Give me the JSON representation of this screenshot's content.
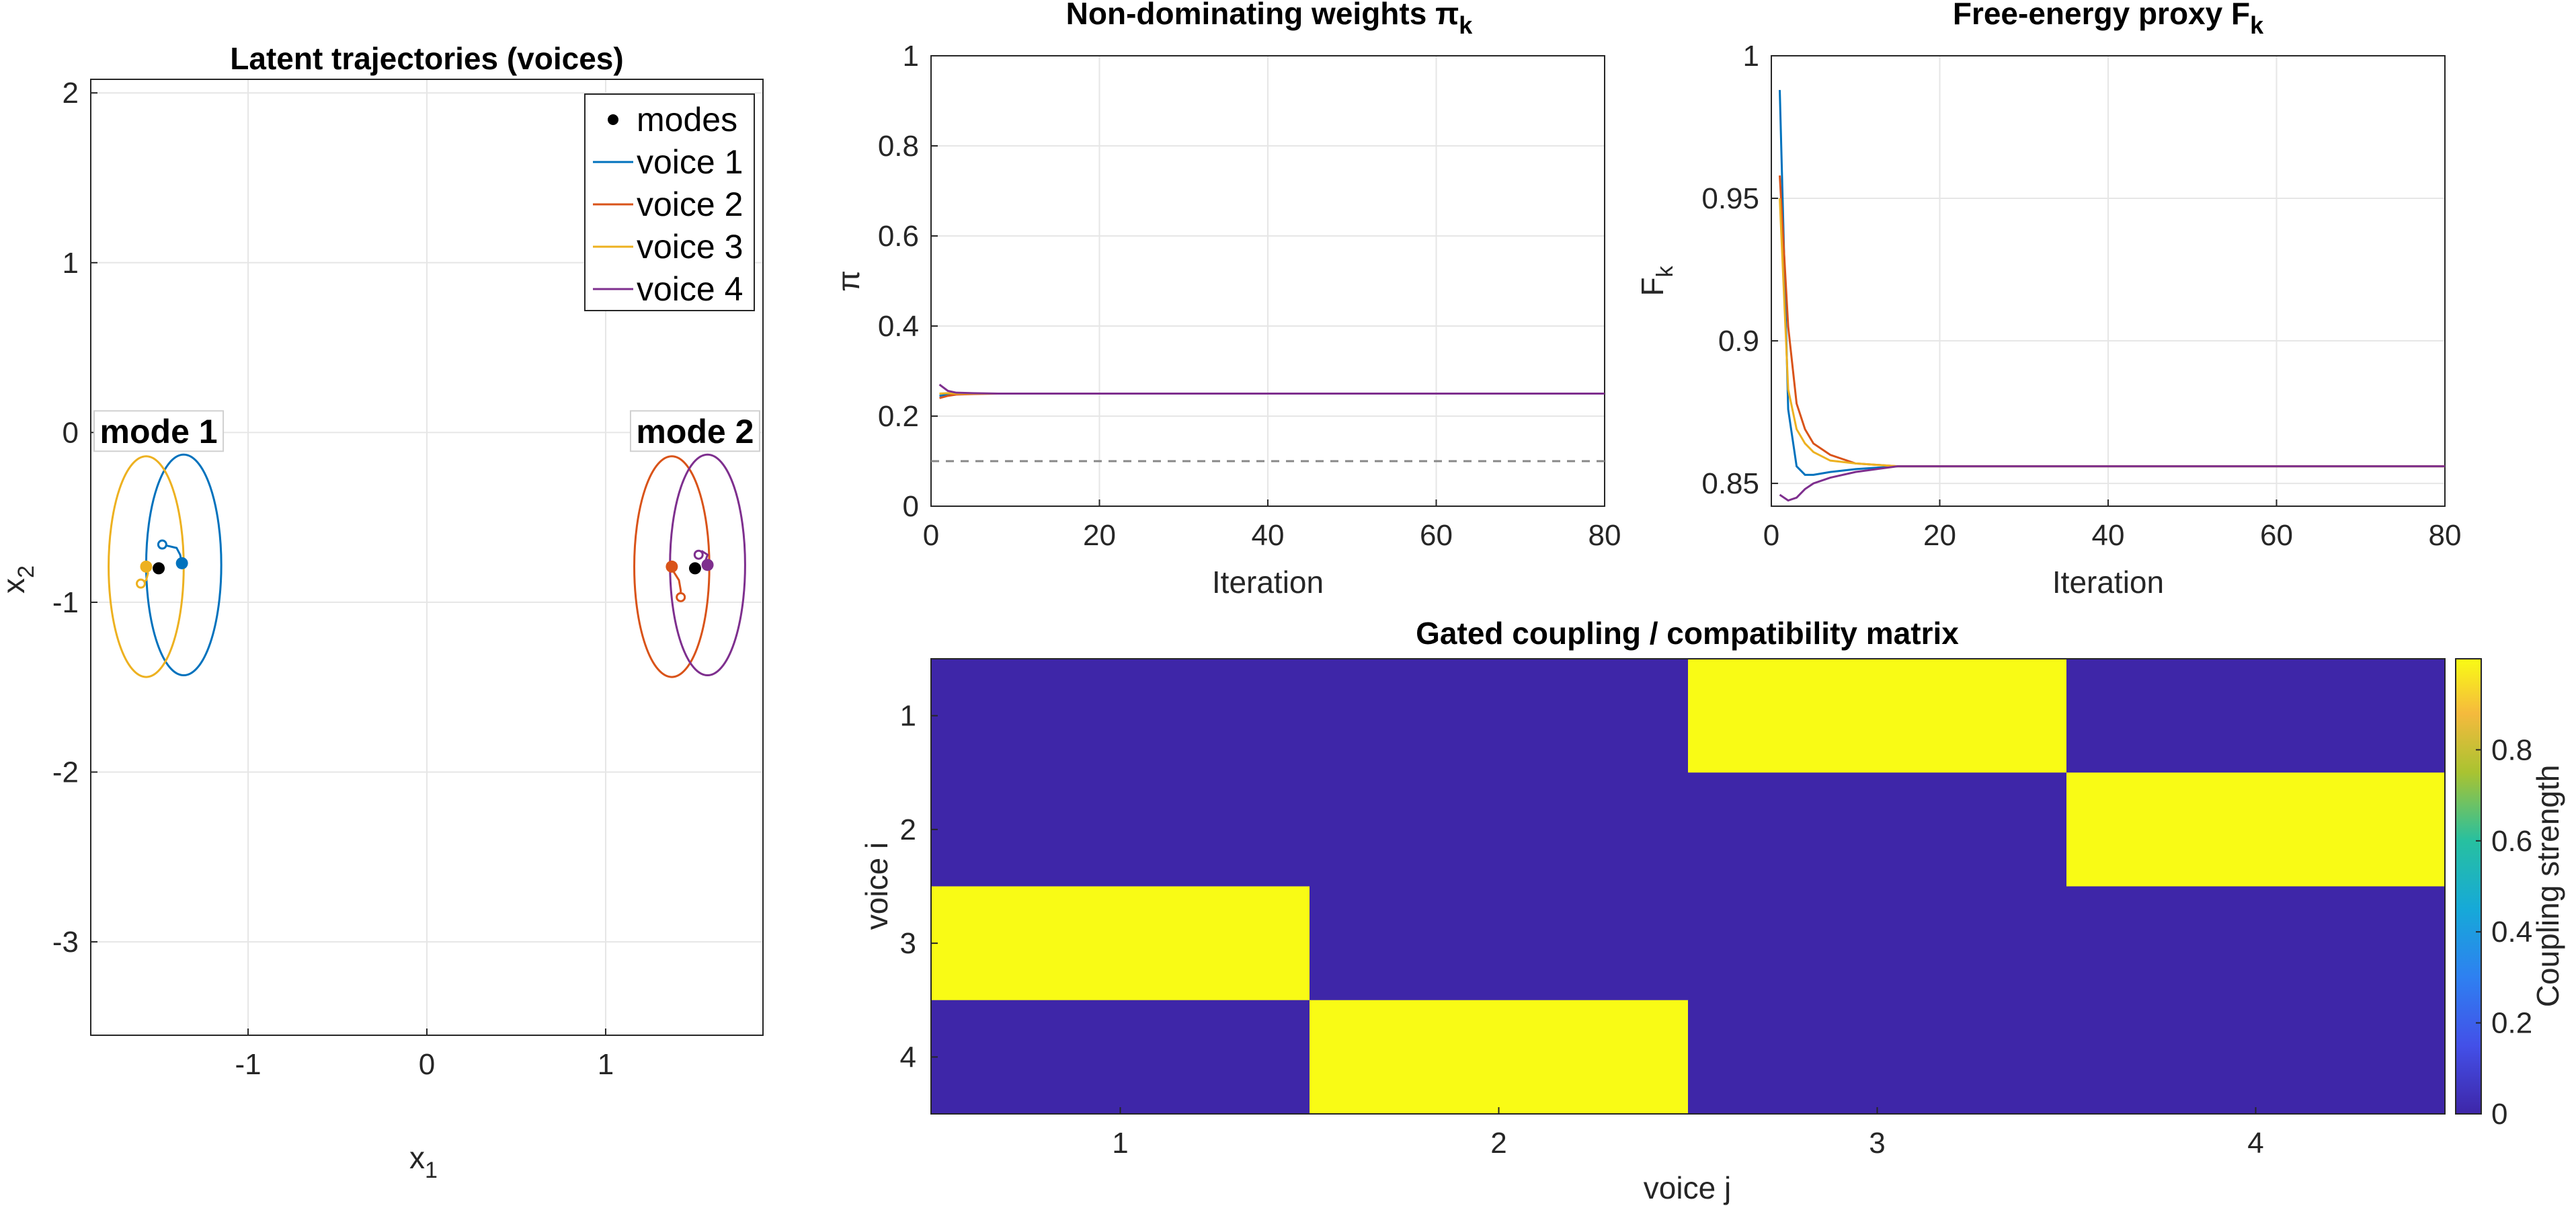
{
  "colors": {
    "blue": "#0072BD",
    "orange": "#D95319",
    "yellow": "#EDB120",
    "purple": "#7E2F8E",
    "mode": "#000000",
    "low": "#3E26A8",
    "high": "#F9FB15"
  },
  "chart_data": [
    {
      "id": "latent",
      "type": "scatter",
      "title": "Latent trajectories (voices)",
      "xlabel": "x",
      "xlabel_sub": "1",
      "ylabel": "x",
      "ylabel_sub": "2",
      "xlim": [
        -1.88,
        1.88
      ],
      "ylim": [
        -3.55,
        2.08
      ],
      "xticks": [
        -1,
        0,
        1
      ],
      "xtick_labels": [
        "-1",
        "0",
        "1"
      ],
      "yticks": [
        2,
        1,
        0,
        -1,
        -2,
        -3
      ],
      "ytick_labels": [
        "2",
        "1",
        "0",
        "-1",
        "-2",
        "-3"
      ],
      "grid": true,
      "legend": {
        "position": "top-right",
        "entries": [
          {
            "label": "modes",
            "kind": "marker",
            "color": "#000000"
          },
          {
            "label": "voice 1",
            "kind": "line",
            "color": "#0072BD"
          },
          {
            "label": "voice 2",
            "kind": "line",
            "color": "#D95319"
          },
          {
            "label": "voice 3",
            "kind": "line",
            "color": "#EDB120"
          },
          {
            "label": "voice 4",
            "kind": "line",
            "color": "#7E2F8E"
          }
        ]
      },
      "modes": [
        {
          "label": "mode 1",
          "x": -1.5,
          "y": -0.8
        },
        {
          "label": "mode 2",
          "x": 1.5,
          "y": -0.8
        }
      ],
      "ellipses": [
        {
          "name": "voice 1",
          "color": "#0072BD",
          "cx": -1.36,
          "cy": -0.78,
          "rx": 0.21,
          "ry": 0.65
        },
        {
          "name": "voice 2",
          "color": "#D95319",
          "cx": 1.37,
          "cy": -0.79,
          "rx": 0.21,
          "ry": 0.65
        },
        {
          "name": "voice 3",
          "color": "#EDB120",
          "cx": -1.57,
          "cy": -0.79,
          "rx": 0.21,
          "ry": 0.65
        },
        {
          "name": "voice 4",
          "color": "#7E2F8E",
          "cx": 1.57,
          "cy": -0.78,
          "rx": 0.21,
          "ry": 0.65
        }
      ],
      "trajectories": [
        {
          "name": "voice 1",
          "color": "#0072BD",
          "points": [
            [
              -1.48,
              -0.66
            ],
            [
              -1.44,
              -0.67
            ],
            [
              -1.4,
              -0.68
            ],
            [
              -1.38,
              -0.72
            ],
            [
              -1.37,
              -0.77
            ]
          ]
        },
        {
          "name": "voice 2",
          "color": "#D95319",
          "points": [
            [
              1.42,
              -0.97
            ],
            [
              1.42,
              -0.93
            ],
            [
              1.41,
              -0.87
            ],
            [
              1.38,
              -0.82
            ],
            [
              1.37,
              -0.79
            ]
          ]
        },
        {
          "name": "voice 3",
          "color": "#EDB120",
          "points": [
            [
              -1.6,
              -0.89
            ],
            [
              -1.57,
              -0.87
            ],
            [
              -1.56,
              -0.83
            ],
            [
              -1.57,
              -0.79
            ]
          ]
        },
        {
          "name": "voice 4",
          "color": "#7E2F8E",
          "points": [
            [
              1.52,
              -0.72
            ],
            [
              1.54,
              -0.7
            ],
            [
              1.57,
              -0.72
            ],
            [
              1.56,
              -0.75
            ],
            [
              1.57,
              -0.78
            ]
          ]
        }
      ]
    },
    {
      "id": "weights",
      "type": "line",
      "title": "Non-dominating weights π",
      "title_sub": "k",
      "xlabel": "Iteration",
      "ylabel": "π",
      "xlim": [
        0,
        80
      ],
      "ylim": [
        0,
        1
      ],
      "xticks": [
        0,
        20,
        40,
        60,
        80
      ],
      "xtick_labels": [
        "0",
        "20",
        "40",
        "60",
        "80"
      ],
      "yticks": [
        0,
        0.2,
        0.4,
        0.6,
        0.8,
        1
      ],
      "ytick_labels": [
        "0",
        "0.2",
        "0.4",
        "0.6",
        "0.8",
        "1"
      ],
      "grid": true,
      "reference_line": {
        "y": 0.1,
        "style": "dashed"
      },
      "series": [
        {
          "name": "voice 1",
          "color": "#0072BD",
          "x": [
            1,
            2,
            3,
            5,
            8,
            12,
            80
          ],
          "values": [
            0.245,
            0.248,
            0.249,
            0.25,
            0.25,
            0.25,
            0.25
          ]
        },
        {
          "name": "voice 2",
          "color": "#D95319",
          "x": [
            1,
            2,
            3,
            5,
            8,
            12,
            80
          ],
          "values": [
            0.24,
            0.245,
            0.248,
            0.249,
            0.25,
            0.25,
            0.25
          ]
        },
        {
          "name": "voice 3",
          "color": "#EDB120",
          "x": [
            1,
            2,
            3,
            5,
            8,
            12,
            80
          ],
          "values": [
            0.25,
            0.251,
            0.25,
            0.25,
            0.25,
            0.25,
            0.25
          ]
        },
        {
          "name": "voice 4",
          "color": "#7E2F8E",
          "x": [
            1,
            2,
            3,
            5,
            8,
            12,
            80
          ],
          "values": [
            0.27,
            0.256,
            0.252,
            0.251,
            0.25,
            0.25,
            0.25
          ]
        }
      ]
    },
    {
      "id": "free_energy",
      "type": "line",
      "title": "Free-energy proxy F",
      "title_sub": "k",
      "xlabel": "Iteration",
      "ylabel": "F",
      "ylabel_sub": "k",
      "xlim": [
        0,
        80
      ],
      "ylim": [
        0.842,
        1
      ],
      "xticks": [
        0,
        20,
        40,
        60,
        80
      ],
      "xtick_labels": [
        "0",
        "20",
        "40",
        "60",
        "80"
      ],
      "yticks": [
        0.85,
        0.9,
        0.95,
        1
      ],
      "ytick_labels": [
        "0.85",
        "0.9",
        "0.95",
        "1"
      ],
      "grid": true,
      "series": [
        {
          "name": "voice 1",
          "color": "#0072BD",
          "x": [
            1,
            2,
            3,
            4,
            5,
            7,
            10,
            15,
            20,
            80
          ],
          "values": [
            0.988,
            0.876,
            0.856,
            0.853,
            0.853,
            0.854,
            0.855,
            0.856,
            0.856,
            0.856
          ]
        },
        {
          "name": "voice 2",
          "color": "#D95319",
          "x": [
            1,
            2,
            3,
            4,
            5,
            7,
            10,
            15,
            20,
            80
          ],
          "values": [
            0.958,
            0.905,
            0.878,
            0.869,
            0.864,
            0.86,
            0.857,
            0.856,
            0.856,
            0.856
          ]
        },
        {
          "name": "voice 3",
          "color": "#EDB120",
          "x": [
            1,
            2,
            3,
            4,
            5,
            7,
            10,
            15,
            20,
            80
          ],
          "values": [
            0.95,
            0.883,
            0.869,
            0.864,
            0.861,
            0.858,
            0.857,
            0.856,
            0.856,
            0.856
          ]
        },
        {
          "name": "voice 4",
          "color": "#7E2F8E",
          "x": [
            1,
            2,
            3,
            4,
            5,
            7,
            10,
            15,
            20,
            80
          ],
          "values": [
            0.846,
            0.844,
            0.845,
            0.848,
            0.85,
            0.852,
            0.854,
            0.856,
            0.856,
            0.856
          ]
        }
      ]
    },
    {
      "id": "coupling",
      "type": "heatmap",
      "title": "Gated coupling / compatibility matrix",
      "xlabel": "voice j",
      "ylabel": "voice i",
      "xticks": [
        "1",
        "2",
        "3",
        "4"
      ],
      "yticks": [
        "1",
        "2",
        "3",
        "4"
      ],
      "matrix": [
        [
          0,
          0,
          1,
          0
        ],
        [
          0,
          0,
          0,
          1
        ],
        [
          1,
          0,
          0,
          0
        ],
        [
          0,
          1,
          0,
          0
        ]
      ],
      "colorbar": {
        "label": "Coupling strength",
        "range": [
          0,
          1
        ],
        "ticks": [
          0,
          0.2,
          0.4,
          0.6,
          0.8
        ],
        "tick_labels": [
          "0",
          "0.2",
          "0.4",
          "0.6",
          "0.8"
        ]
      }
    }
  ]
}
